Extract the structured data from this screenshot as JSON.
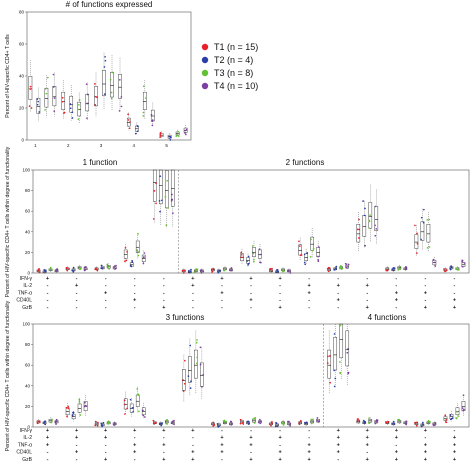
{
  "colors": {
    "T1": "#e8202a",
    "T2": "#2b3ea8",
    "T3": "#62c132",
    "T4": "#7d3fa0"
  },
  "legend": [
    {
      "key": "T1",
      "label": "T1 (n = 15)"
    },
    {
      "key": "T2",
      "label": "T2 (n = 4)"
    },
    {
      "key": "T3",
      "label": "T3 (n = 8)"
    },
    {
      "key": "T4",
      "label": "T4 (n = 10)"
    }
  ],
  "chart_data": [
    {
      "id": "top",
      "type": "box",
      "title": "# of functions expressed",
      "ylabel": "Percent of HIV-specific CD4+ T cells",
      "ylim": [
        0,
        80
      ],
      "yticks": [
        0,
        20,
        40,
        60,
        80
      ],
      "categories": [
        "1",
        "2",
        "3",
        "4",
        "5"
      ],
      "series": [
        {
          "key": "T1",
          "medians": [
            32,
            24,
            27,
            11,
            3
          ]
        },
        {
          "key": "T2",
          "medians": [
            21,
            22,
            35,
            7,
            2
          ]
        },
        {
          "key": "T3",
          "medians": [
            26,
            19,
            34,
            24,
            4
          ]
        },
        {
          "key": "T4",
          "medians": [
            27,
            23,
            33,
            15,
            6
          ]
        }
      ]
    },
    {
      "id": "mid",
      "type": "box",
      "ylabel": "Percent of HIV-specific CD4+ T cells within degree of functionality",
      "ylim": [
        0,
        100
      ],
      "yticks": [
        0,
        20,
        40,
        60,
        80,
        100
      ],
      "panels": [
        {
          "title": "1 function",
          "groups": 5
        },
        {
          "title": "2 functions",
          "groups": 10
        }
      ],
      "row_labels": [
        "IFN-γ",
        "IL-2",
        "TNF-α",
        "CD40L",
        "GzB"
      ],
      "markers": [
        [
          "+",
          "-",
          "-",
          "-",
          "-",
          "+",
          "+",
          "+",
          "+",
          "-",
          "-",
          "-",
          "-",
          "-",
          "-"
        ],
        [
          "-",
          "+",
          "-",
          "-",
          "-",
          "+",
          "-",
          "-",
          "-",
          "+",
          "+",
          "+",
          "-",
          "-",
          "-"
        ],
        [
          "-",
          "-",
          "+",
          "-",
          "-",
          "-",
          "+",
          "-",
          "-",
          "+",
          "-",
          "-",
          "+",
          "+",
          "-"
        ],
        [
          "-",
          "-",
          "-",
          "+",
          "-",
          "-",
          "-",
          "+",
          "-",
          "-",
          "+",
          "-",
          "+",
          "-",
          "+"
        ],
        [
          "-",
          "-",
          "-",
          "-",
          "+",
          "-",
          "-",
          "-",
          "+",
          "-",
          "-",
          "+",
          "-",
          "+",
          "+"
        ]
      ],
      "medians": {
        "T1": [
          2,
          4,
          4,
          18,
          88,
          2,
          3,
          15,
          2,
          22,
          3,
          38,
          4,
          30,
          3
        ],
        "T2": [
          1,
          3,
          5,
          8,
          85,
          1,
          2,
          12,
          1,
          15,
          4,
          45,
          3,
          40,
          5
        ],
        "T3": [
          3,
          5,
          6,
          25,
          80,
          2,
          4,
          20,
          3,
          28,
          5,
          55,
          5,
          38,
          4
        ],
        "T4": [
          2,
          4,
          5,
          14,
          82,
          2,
          3,
          18,
          2,
          20,
          6,
          52,
          4,
          10,
          8
        ]
      }
    },
    {
      "id": "bottom",
      "type": "box",
      "ylabel": "Percent of HIV-specific CD4+ T cells within degree of functionality",
      "ylim": [
        0,
        100
      ],
      "yticks": [
        0,
        20,
        40,
        60,
        80,
        100
      ],
      "panels": [
        {
          "title": "3 functions",
          "groups": 10
        },
        {
          "title": "4 functions",
          "groups": 5
        }
      ],
      "row_labels": [
        "IFN-γ",
        "IL-2",
        "TNF-α",
        "CD40L",
        "GzB"
      ],
      "markers": [
        [
          "+",
          "+",
          "+",
          "+",
          "+",
          "+",
          "-",
          "-",
          "-",
          "-",
          "+",
          "+",
          "+",
          "+",
          "-"
        ],
        [
          "+",
          "+",
          "+",
          "-",
          "-",
          "-",
          "+",
          "+",
          "+",
          "-",
          "+",
          "+",
          "+",
          "-",
          "+"
        ],
        [
          "+",
          "-",
          "-",
          "+",
          "+",
          "-",
          "+",
          "+",
          "-",
          "+",
          "+",
          "+",
          "-",
          "+",
          "+"
        ],
        [
          "-",
          "+",
          "-",
          "+",
          "-",
          "+",
          "+",
          "-",
          "+",
          "+",
          "+",
          "-",
          "+",
          "+",
          "+"
        ],
        [
          "-",
          "-",
          "+",
          "-",
          "+",
          "+",
          "-",
          "+",
          "+",
          "+",
          "-",
          "+",
          "+",
          "+",
          "+"
        ]
      ],
      "medians": {
        "T1": [
          5,
          15,
          3,
          22,
          4,
          45,
          3,
          5,
          3,
          4,
          60,
          5,
          4,
          3,
          8
        ],
        "T2": [
          4,
          10,
          2,
          18,
          3,
          55,
          2,
          4,
          2,
          3,
          70,
          4,
          3,
          2,
          10
        ],
        "T3": [
          6,
          18,
          4,
          25,
          5,
          60,
          4,
          6,
          4,
          5,
          85,
          6,
          5,
          4,
          15
        ],
        "T4": [
          5,
          20,
          3,
          15,
          4,
          50,
          3,
          5,
          3,
          6,
          75,
          5,
          4,
          3,
          20
        ]
      }
    }
  ]
}
